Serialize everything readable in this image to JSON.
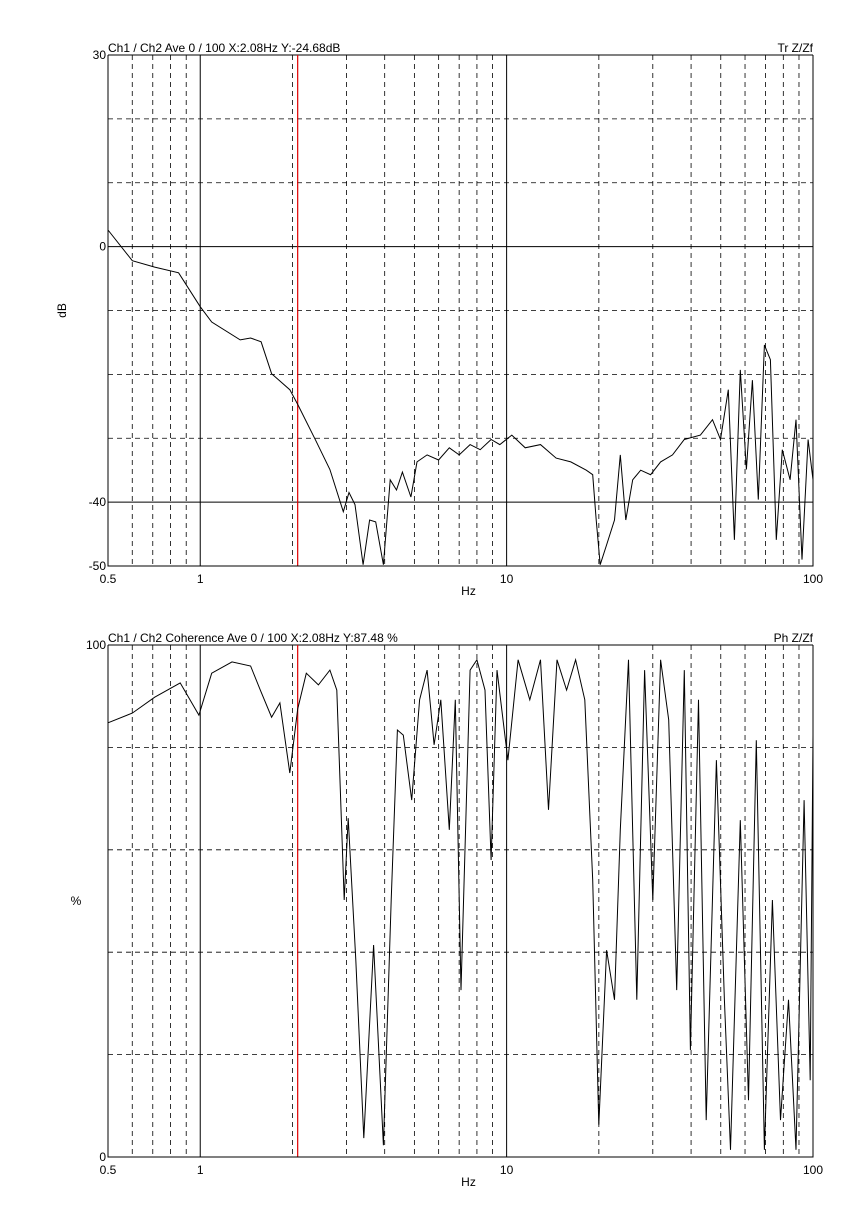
{
  "chart_data": [
    {
      "type": "line",
      "title": "Ch1 / Ch2  Ave 0 / 100  X:2.08Hz  Y:-24.68dB",
      "annotation": "Tr Z/Zf",
      "xlabel": "Hz",
      "ylabel": "dB",
      "xscale": "log",
      "xlim": [
        0.5,
        100
      ],
      "xticks": [
        0.5,
        1,
        10,
        100
      ],
      "minor_xticks": [
        0.6,
        0.7,
        0.8,
        0.9,
        2,
        3,
        4,
        5,
        6,
        7,
        8,
        9,
        20,
        30,
        40,
        50,
        60,
        70,
        80,
        90
      ],
      "ylim": [
        -50,
        30
      ],
      "yticks": [
        30,
        0,
        -40,
        -50
      ],
      "minor_yticks": [
        20,
        10,
        -10,
        -20,
        -30
      ],
      "cursor_x": 2.08,
      "cursor_color": "#e00000",
      "color": "#000000",
      "x": [
        0.5,
        0.6,
        0.71,
        0.85,
        1.0,
        1.09,
        1.35,
        1.46,
        1.58,
        1.71,
        1.96,
        2.08,
        2.38,
        2.65,
        2.93,
        3.06,
        3.2,
        3.4,
        3.57,
        3.74,
        3.96,
        4.17,
        4.37,
        4.57,
        4.87,
        5.1,
        5.5,
        6.0,
        6.5,
        7.0,
        7.6,
        8.2,
        8.9,
        9.5,
        10.4,
        11.5,
        12.9,
        14.5,
        16.2,
        18.2,
        19.1,
        19.6,
        20.2,
        21.2,
        22.5,
        23.5,
        24.5,
        25.8,
        27.4,
        29.5,
        31.8,
        34.8,
        38.0,
        42.9,
        47.0,
        49.9,
        52.9,
        55.4,
        57.9,
        60.6,
        63.4,
        66.3,
        69.4,
        72.6,
        75.9,
        79.4,
        84.2,
        88.0,
        92.1,
        96.4,
        100
      ],
      "values": [
        2.6,
        -2.2,
        -3.2,
        -4.1,
        -9.4,
        -11.8,
        -14.6,
        -14.3,
        -14.9,
        -19.9,
        -22.4,
        -24.7,
        -30.3,
        -34.9,
        -41.5,
        -38.5,
        -40.4,
        -49.8,
        -42.8,
        -43.1,
        -49.8,
        -36.5,
        -38.1,
        -35.3,
        -39.2,
        -33.7,
        -32.6,
        -33.4,
        -31.5,
        -32.6,
        -31.0,
        -31.8,
        -30.2,
        -31.0,
        -29.5,
        -31.5,
        -31.0,
        -33.1,
        -33.7,
        -35.0,
        -35.7,
        -42.8,
        -49.8,
        -46.7,
        -42.8,
        -32.6,
        -42.8,
        -36.5,
        -35.0,
        -35.7,
        -33.7,
        -32.6,
        -30.2,
        -29.5,
        -27.1,
        -30.2,
        -22.4,
        -45.9,
        -19.3,
        -34.9,
        -20.9,
        -39.6,
        -15.4,
        -17.7,
        -45.9,
        -31.8,
        -36.5,
        -27.1,
        -49.0,
        -30.2,
        -36.5
      ]
    },
    {
      "type": "line",
      "title": "Ch1 / Ch2  Coherence Ave 0 / 100  X:2.08Hz  Y:87.48 %",
      "annotation": "Ph Z/Zf",
      "xlabel": "Hz",
      "ylabel": "%",
      "xscale": "log",
      "xlim": [
        0.5,
        100
      ],
      "xticks": [
        0.5,
        1,
        10,
        100
      ],
      "minor_xticks": [
        0.6,
        0.7,
        0.8,
        0.9,
        2,
        3,
        4,
        5,
        6,
        7,
        8,
        9,
        20,
        30,
        40,
        50,
        60,
        70,
        80,
        90
      ],
      "ylim": [
        0,
        100
      ],
      "yticks": [
        100,
        0
      ],
      "minor_yticks": [
        80,
        60,
        40,
        20
      ],
      "cursor_x": 2.08,
      "cursor_color": "#e00000",
      "color": "#000000",
      "x": [
        0.5,
        0.6,
        0.71,
        0.86,
        0.99,
        1.09,
        1.27,
        1.46,
        1.57,
        1.71,
        1.82,
        1.96,
        2.08,
        2.22,
        2.43,
        2.65,
        2.79,
        2.95,
        3.04,
        3.22,
        3.42,
        3.68,
        3.96,
        4.2,
        4.4,
        4.6,
        4.9,
        5.2,
        5.5,
        5.8,
        6.1,
        6.5,
        6.8,
        7.1,
        7.6,
        8.0,
        8.5,
        8.9,
        9.3,
        10.1,
        10.9,
        11.9,
        12.9,
        13.7,
        14.6,
        15.7,
        16.8,
        18.0,
        19.1,
        20.0,
        21.2,
        22.5,
        23.5,
        25.0,
        26.6,
        28.2,
        30.0,
        31.8,
        33.8,
        35.9,
        38.0,
        39.8,
        42.3,
        44.8,
        48.4,
        51.4,
        53.8,
        57.9,
        61.6,
        65.3,
        69.4,
        73.7,
        78.3,
        83.2,
        88.0,
        93.5,
        97.9,
        100
      ],
      "values": [
        84.8,
        86.7,
        89.8,
        92.6,
        86.3,
        94.5,
        96.7,
        95.9,
        91.2,
        85.9,
        88.7,
        75.0,
        87.5,
        94.5,
        92.2,
        95.1,
        91.2,
        50.2,
        66.2,
        38.5,
        3.7,
        41.4,
        2.3,
        50.2,
        83.4,
        82.4,
        69.7,
        89.3,
        95.1,
        80.5,
        89.3,
        63.9,
        89.3,
        32.6,
        95.1,
        97.1,
        91.2,
        58.0,
        95.1,
        77.5,
        97.1,
        89.3,
        97.1,
        67.8,
        97.1,
        91.2,
        97.1,
        89.3,
        54.1,
        6.3,
        40.4,
        30.7,
        63.9,
        97.1,
        30.7,
        95.1,
        50.2,
        97.1,
        85.4,
        32.6,
        95.1,
        20.9,
        89.3,
        7.2,
        77.5,
        30.7,
        1.4,
        65.8,
        11.1,
        81.4,
        1.4,
        50.2,
        7.2,
        30.7,
        1.4,
        69.7,
        15.0,
        82.4
      ]
    }
  ]
}
